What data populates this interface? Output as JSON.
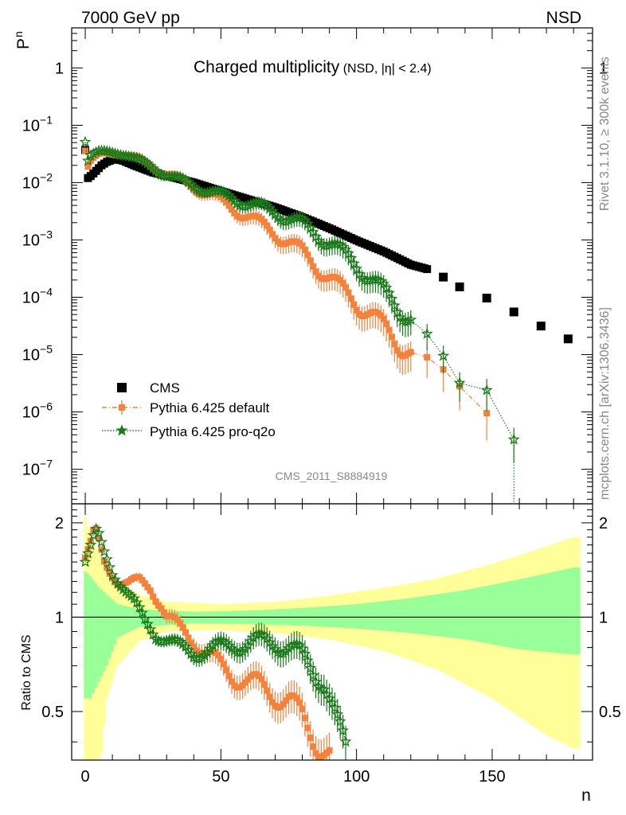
{
  "header": {
    "energy_label": "7000 GeV pp",
    "process_label": "NSD",
    "title_main": "Charged multiplicity",
    "title_sub": "(NSD, |η| < 2.4)",
    "side_rivet": "Rivet 3.1.10, ≥ 300k events",
    "side_mcplots": "mcplots.cern.ch [arXiv:1306.3436]",
    "analysis_id": "CMS_2011_S8884919",
    "ylabel_main": "P",
    "ylabel_main_sub": "n",
    "ylabel_ratio": "Ratio to CMS",
    "xlabel": "n"
  },
  "legend": [
    {
      "label": "CMS",
      "color": "#000000",
      "marker": "square"
    },
    {
      "label": "Pythia 6.425 default",
      "color": "#f5823c",
      "marker": "square"
    },
    {
      "label": "Pythia 6.425 pro-q2o",
      "color": "#1a7a1a",
      "marker": "star"
    }
  ],
  "colors": {
    "cms": "#000000",
    "pythia_default": "#f5823c",
    "pythia_proq2o": "#1a7a1a",
    "band_total": "#ffff99",
    "band_stat": "#99ff99",
    "analysis_label": "#888888"
  },
  "chart_data": [
    {
      "type": "scatter",
      "panel": "main",
      "xlim": [
        -5,
        187
      ],
      "ylim": [
        2.5e-08,
        5
      ],
      "yscale": "log",
      "y_ticks": [
        {
          "v": 1e-07,
          "l": "10",
          "e": "−7"
        },
        {
          "v": 1e-06,
          "l": "10",
          "e": "−6"
        },
        {
          "v": 1e-05,
          "l": "10",
          "e": "−5"
        },
        {
          "v": 0.0001,
          "l": "10",
          "e": "−4"
        },
        {
          "v": 0.001,
          "l": "10",
          "e": "−3"
        },
        {
          "v": 0.01,
          "l": "10",
          "e": "−2"
        },
        {
          "v": 0.1,
          "l": "10",
          "e": "−1"
        },
        {
          "v": 1,
          "l": "1",
          "e": ""
        }
      ],
      "series": [
        {
          "name": "CMS",
          "marker": "square",
          "anchors": [
            [
              0,
              0.037
            ],
            [
              1,
              0.012
            ],
            [
              2,
              0.013
            ],
            [
              4,
              0.016
            ],
            [
              6,
              0.02
            ],
            [
              8,
              0.023
            ],
            [
              10,
              0.025
            ],
            [
              12,
              0.0255
            ],
            [
              14,
              0.024
            ],
            [
              18,
              0.02
            ],
            [
              25,
              0.015
            ],
            [
              30,
              0.0132
            ],
            [
              40,
              0.01
            ],
            [
              50,
              0.0071
            ],
            [
              60,
              0.0051
            ],
            [
              70,
              0.0037
            ],
            [
              80,
              0.0025
            ],
            [
              90,
              0.0016
            ],
            [
              100,
              0.00098
            ],
            [
              110,
              0.00063
            ],
            [
              120,
              0.00037
            ],
            [
              126,
              0.00031
            ]
          ],
          "sparse": [
            [
              132,
              0.000225
            ],
            [
              138,
              0.000152
            ],
            [
              148,
              9.68e-05
            ],
            [
              158,
              5.55e-05
            ],
            [
              168,
              3.15e-05
            ],
            [
              178,
              1.88e-05
            ]
          ]
        },
        {
          "name": "Pythia 6.425 default",
          "marker": "square",
          "anchors": [
            [
              0,
              0.036
            ],
            [
              1,
              0.019
            ],
            [
              2,
              0.024
            ],
            [
              5,
              0.03
            ],
            [
              8,
              0.032
            ],
            [
              12,
              0.033
            ],
            [
              15,
              0.031
            ],
            [
              20,
              0.025
            ],
            [
              30,
              0.0145
            ],
            [
              40,
              0.0085
            ],
            [
              50,
              0.0048
            ],
            [
              60,
              0.0026
            ],
            [
              70,
              0.00135
            ],
            [
              80,
              0.00063
            ],
            [
              90,
              0.00022
            ],
            [
              100,
              8.5e-05
            ],
            [
              110,
              3.2e-05
            ],
            [
              120,
              1.05e-05
            ],
            [
              126,
              9e-06
            ],
            [
              132,
              5.5e-06
            ],
            [
              138,
              2.8e-06
            ],
            [
              148,
              9.5e-07
            ]
          ]
        },
        {
          "name": "Pythia 6.425 pro-q2o",
          "marker": "star",
          "anchors": [
            [
              0,
              0.051
            ],
            [
              1,
              0.024
            ],
            [
              2,
              0.03
            ],
            [
              5,
              0.034
            ],
            [
              9,
              0.034
            ],
            [
              12,
              0.0335
            ],
            [
              15,
              0.031
            ],
            [
              20,
              0.024
            ],
            [
              30,
              0.0138
            ],
            [
              40,
              0.0088
            ],
            [
              50,
              0.0061
            ],
            [
              60,
              0.0044
            ],
            [
              70,
              0.0031
            ],
            [
              80,
              0.0019
            ],
            [
              90,
              0.00092
            ],
            [
              100,
              0.00038
            ],
            [
              110,
              0.00013
            ],
            [
              115,
              7e-05
            ],
            [
              120,
              4.5e-05
            ],
            [
              126,
              2.3e-05
            ],
            [
              132,
              9.5e-06
            ],
            [
              138,
              3.2e-06
            ],
            [
              148,
              2.4e-06
            ],
            [
              158,
              3.3e-07
            ]
          ]
        }
      ]
    },
    {
      "type": "scatter",
      "panel": "ratio",
      "xlim": [
        -5,
        187
      ],
      "ylim": [
        0.35,
        2.3
      ],
      "yscale": "log",
      "x_ticks": [
        0,
        50,
        100,
        150
      ],
      "y_ticks": [
        0.5,
        1,
        2
      ],
      "reference_line": 1,
      "bands": {
        "total": [
          [
            0,
            2.1,
            0.3
          ],
          [
            2,
            1.8,
            0.35
          ],
          [
            5,
            1.6,
            0.3
          ],
          [
            8,
            1.45,
            0.55
          ],
          [
            12,
            1.3,
            0.7
          ],
          [
            20,
            1.18,
            0.84
          ],
          [
            30,
            1.12,
            0.9
          ],
          [
            50,
            1.1,
            0.91
          ],
          [
            70,
            1.12,
            0.89
          ],
          [
            90,
            1.17,
            0.85
          ],
          [
            110,
            1.24,
            0.78
          ],
          [
            130,
            1.33,
            0.68
          ],
          [
            150,
            1.48,
            0.55
          ],
          [
            170,
            1.68,
            0.42
          ],
          [
            180,
            1.8,
            0.38
          ]
        ],
        "stat": [
          [
            0,
            1.4,
            0.55
          ],
          [
            2,
            1.35,
            0.55
          ],
          [
            5,
            1.25,
            0.62
          ],
          [
            8,
            1.18,
            0.7
          ],
          [
            12,
            1.1,
            0.86
          ],
          [
            20,
            1.06,
            0.93
          ],
          [
            40,
            1.04,
            0.955
          ],
          [
            60,
            1.05,
            0.95
          ],
          [
            80,
            1.07,
            0.94
          ],
          [
            100,
            1.1,
            0.92
          ],
          [
            120,
            1.15,
            0.89
          ],
          [
            140,
            1.22,
            0.85
          ],
          [
            160,
            1.32,
            0.79
          ],
          [
            180,
            1.44,
            0.76
          ]
        ]
      },
      "series": [
        {
          "name": "Pythia 6.425 default",
          "marker": "square",
          "anchors": [
            [
              0,
              1.55
            ],
            [
              2,
              1.75
            ],
            [
              3,
              1.85
            ],
            [
              4,
              1.88
            ],
            [
              5,
              1.75
            ],
            [
              7,
              1.5
            ],
            [
              9,
              1.4
            ],
            [
              12,
              1.3
            ],
            [
              16,
              1.28
            ],
            [
              20,
              1.3
            ],
            [
              24,
              1.25
            ],
            [
              28,
              1.1
            ],
            [
              30,
              1.0
            ],
            [
              35,
              0.92
            ],
            [
              40,
              0.85
            ],
            [
              45,
              0.76
            ],
            [
              50,
              0.7
            ],
            [
              55,
              0.65
            ],
            [
              60,
              0.62
            ],
            [
              65,
              0.6
            ],
            [
              70,
              0.57
            ],
            [
              75,
              0.54
            ],
            [
              80,
              0.48
            ],
            [
              85,
              0.41
            ],
            [
              90,
              0.36
            ]
          ]
        },
        {
          "name": "Pythia 6.425 pro-q2o",
          "marker": "star",
          "anchors": [
            [
              0,
              1.5
            ],
            [
              2,
              1.7
            ],
            [
              3,
              1.8
            ],
            [
              4,
              1.88
            ],
            [
              5,
              1.82
            ],
            [
              7,
              1.6
            ],
            [
              10,
              1.38
            ],
            [
              14,
              1.25
            ],
            [
              18,
              1.12
            ],
            [
              22,
              0.97
            ],
            [
              26,
              0.88
            ],
            [
              30,
              0.85
            ],
            [
              35,
              0.8
            ],
            [
              40,
              0.77
            ],
            [
              45,
              0.78
            ],
            [
              50,
              0.8
            ],
            [
              55,
              0.82
            ],
            [
              60,
              0.82
            ],
            [
              65,
              0.83
            ],
            [
              70,
              0.84
            ],
            [
              75,
              0.8
            ],
            [
              80,
              0.74
            ],
            [
              85,
              0.67
            ],
            [
              88,
              0.63
            ],
            [
              90,
              0.55
            ],
            [
              93,
              0.45
            ],
            [
              96,
              0.38
            ]
          ]
        }
      ]
    }
  ]
}
